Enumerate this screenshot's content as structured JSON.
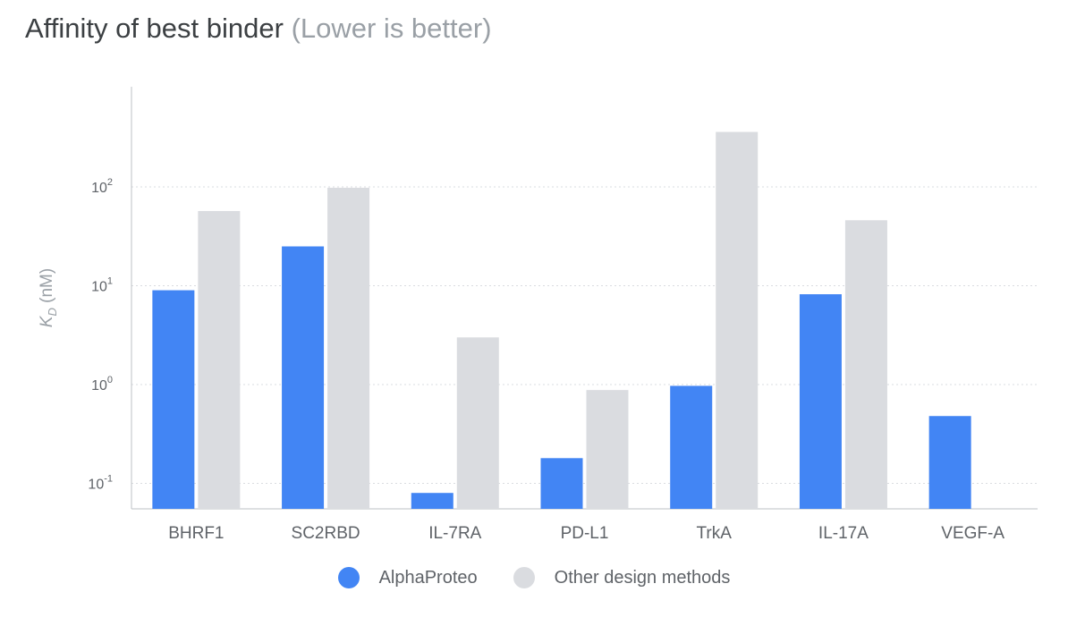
{
  "title": {
    "main": "Affinity of best binder",
    "sub": "(Lower is better)"
  },
  "colors": {
    "alphaproteo": "#4285f4",
    "other": "#dadce0",
    "grid": "#dadce0",
    "axis": "#bdc1c6"
  },
  "chart_data": {
    "type": "bar",
    "title": "Affinity of best binder (Lower is better)",
    "xlabel": "",
    "ylabel_main": "K",
    "ylabel_sub": "D",
    "ylabel_unit": " (nM)",
    "yscale": "log",
    "ylim": [
      0.05,
      1000
    ],
    "yticks": [
      {
        "base": "10",
        "exp": "2",
        "value": 100
      },
      {
        "base": "10",
        "exp": "1",
        "value": 10
      },
      {
        "base": "10",
        "exp": "0",
        "value": 1
      },
      {
        "base": "10",
        "exp": "-1",
        "value": 0.1
      }
    ],
    "grid": true,
    "legend_position": "bottom-center",
    "categories": [
      "BHRF1",
      "SC2RBD",
      "IL-7RA",
      "PD-L1",
      "TrkA",
      "IL-17A",
      "VEGF-A"
    ],
    "series": [
      {
        "name": "AlphaProteo",
        "color": "#4285f4",
        "values": [
          9.0,
          25,
          0.08,
          0.18,
          0.97,
          8.2,
          0.48
        ]
      },
      {
        "name": "Other design methods",
        "color": "#dadce0",
        "values": [
          57,
          98,
          3.0,
          0.88,
          360,
          46,
          null
        ]
      }
    ]
  }
}
